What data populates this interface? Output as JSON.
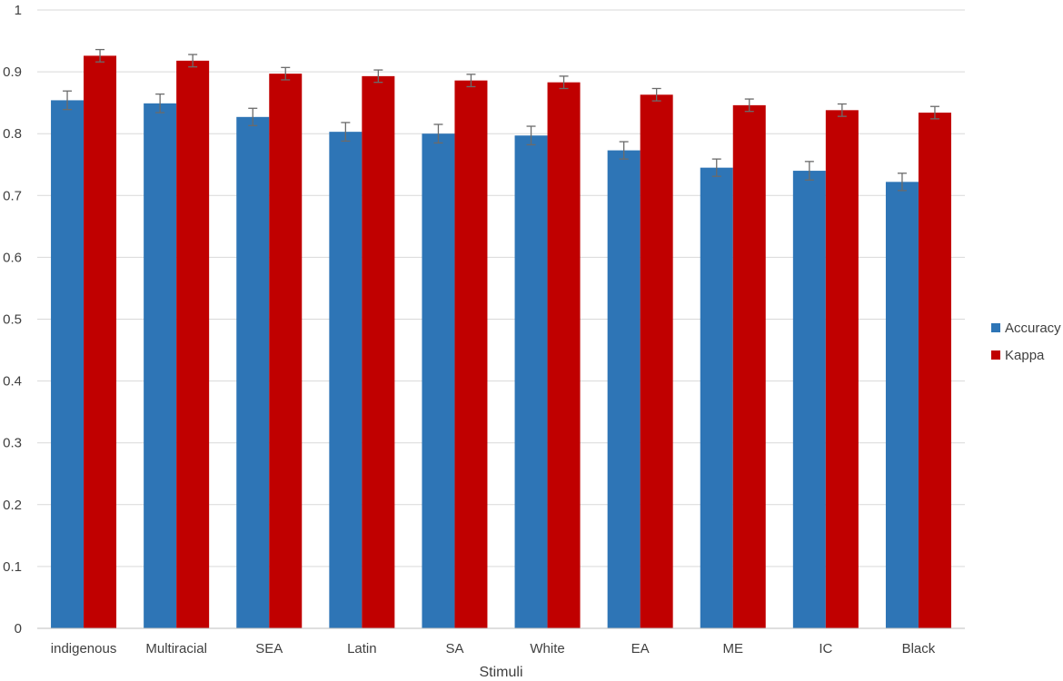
{
  "chart_data": {
    "type": "bar",
    "title": "",
    "xlabel": "Stimuli",
    "ylabel": "",
    "ylim": [
      0,
      1
    ],
    "yticks": [
      0,
      0.1,
      0.2,
      0.3,
      0.4,
      0.5,
      0.6,
      0.7,
      0.8,
      0.9,
      1
    ],
    "ytick_labels": [
      "0",
      "0.1",
      "0.2",
      "0.3",
      "0.4",
      "0.5",
      "0.6",
      "0.7",
      "0.8",
      "0.9",
      "1"
    ],
    "grid": true,
    "legend_position": "right",
    "categories": [
      "indigenous",
      "Multiracial",
      "SEA",
      "Latin",
      "SA",
      "White",
      "EA",
      "ME",
      "IC",
      "Black"
    ],
    "series": [
      {
        "name": "Accuracy",
        "color": "#2E75B6",
        "values": [
          0.854,
          0.849,
          0.827,
          0.803,
          0.8,
          0.797,
          0.773,
          0.745,
          0.74,
          0.722
        ],
        "error": [
          0.015,
          0.015,
          0.014,
          0.015,
          0.015,
          0.015,
          0.014,
          0.014,
          0.015,
          0.014
        ]
      },
      {
        "name": "Kappa",
        "color": "#C00000",
        "values": [
          0.926,
          0.918,
          0.897,
          0.893,
          0.886,
          0.883,
          0.863,
          0.846,
          0.838,
          0.834
        ],
        "error": [
          0.01,
          0.01,
          0.01,
          0.01,
          0.01,
          0.01,
          0.01,
          0.01,
          0.01,
          0.01
        ]
      }
    ]
  }
}
